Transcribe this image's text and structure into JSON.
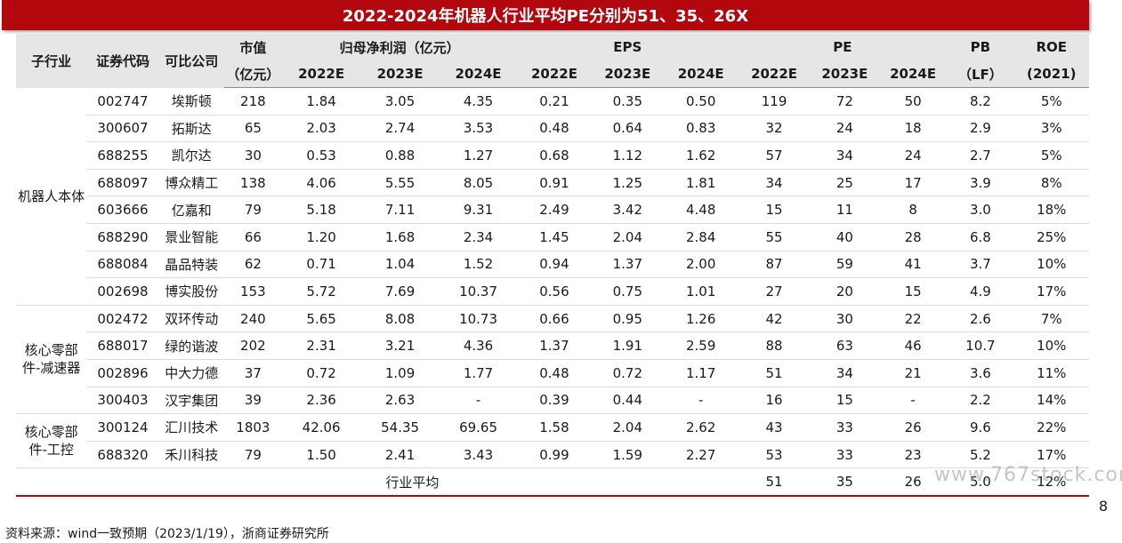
{
  "title": "2022-2024年机器人行业平均PE分别为51、35、26X",
  "header": {
    "row1": {
      "subind": "子行业",
      "code": "证券代码",
      "company": "可比公司",
      "mktcap": "市值",
      "profit": "归母净利润（亿元）",
      "eps": "EPS",
      "pe": "PE",
      "pb": "PB",
      "roe": "ROE"
    },
    "row2": {
      "mktcap": "（亿元）",
      "p22": "2022E",
      "p23": "2023E",
      "p24": "2024E",
      "e22": "2022E",
      "e23": "2023E",
      "e24": "2024E",
      "pe22": "2022E",
      "pe23": "2023E",
      "pe24": "2024E",
      "pb": "（LF）",
      "roe": "(2021)"
    }
  },
  "groups": [
    "机器人本体",
    "核心零部件-减速器",
    "核心零部件-工控"
  ],
  "rows": [
    [
      "002747",
      "埃斯顿",
      "218",
      "1.84",
      "3.05",
      "4.35",
      "0.21",
      "0.35",
      "0.50",
      "119",
      "72",
      "50",
      "8.2",
      "5%"
    ],
    [
      "300607",
      "拓斯达",
      "65",
      "2.03",
      "2.74",
      "3.53",
      "0.48",
      "0.64",
      "0.83",
      "32",
      "24",
      "18",
      "2.9",
      "3%"
    ],
    [
      "688255",
      "凯尔达",
      "30",
      "0.53",
      "0.88",
      "1.27",
      "0.68",
      "1.12",
      "1.62",
      "57",
      "34",
      "24",
      "2.7",
      "5%"
    ],
    [
      "688097",
      "博众精工",
      "138",
      "4.06",
      "5.55",
      "8.05",
      "0.91",
      "1.25",
      "1.81",
      "34",
      "25",
      "17",
      "3.9",
      "8%"
    ],
    [
      "603666",
      "亿嘉和",
      "79",
      "5.18",
      "7.11",
      "9.31",
      "2.49",
      "3.42",
      "4.48",
      "15",
      "11",
      "8",
      "3.0",
      "18%"
    ],
    [
      "688290",
      "景业智能",
      "66",
      "1.20",
      "1.68",
      "2.34",
      "1.45",
      "2.04",
      "2.84",
      "55",
      "40",
      "28",
      "6.8",
      "25%"
    ],
    [
      "688084",
      "晶品特装",
      "62",
      "0.71",
      "1.04",
      "1.52",
      "0.94",
      "1.37",
      "2.00",
      "87",
      "59",
      "41",
      "3.7",
      "10%"
    ],
    [
      "002698",
      "博实股份",
      "153",
      "5.72",
      "7.69",
      "10.37",
      "0.56",
      "0.75",
      "1.01",
      "27",
      "20",
      "15",
      "4.9",
      "17%"
    ],
    [
      "002472",
      "双环传动",
      "240",
      "5.65",
      "8.08",
      "10.73",
      "0.66",
      "0.95",
      "1.26",
      "42",
      "30",
      "22",
      "2.6",
      "7%"
    ],
    [
      "688017",
      "绿的谐波",
      "202",
      "2.31",
      "3.21",
      "4.36",
      "1.37",
      "1.91",
      "2.59",
      "88",
      "63",
      "46",
      "10.7",
      "10%"
    ],
    [
      "002896",
      "中大力德",
      "37",
      "0.72",
      "1.09",
      "1.77",
      "0.48",
      "0.72",
      "1.17",
      "51",
      "34",
      "21",
      "3.6",
      "11%"
    ],
    [
      "300403",
      "汉宇集团",
      "39",
      "2.36",
      "2.63",
      "-",
      "0.39",
      "0.44",
      "-",
      "16",
      "15",
      "-",
      "2.2",
      "14%"
    ],
    [
      "300124",
      "汇川技术",
      "1803",
      "42.06",
      "54.35",
      "69.65",
      "1.58",
      "2.04",
      "2.62",
      "43",
      "33",
      "26",
      "9.6",
      "22%"
    ],
    [
      "688320",
      "禾川科技",
      "79",
      "1.50",
      "2.41",
      "3.43",
      "0.99",
      "1.59",
      "2.27",
      "53",
      "33",
      "23",
      "5.2",
      "17%"
    ]
  ],
  "average": {
    "label": "行业平均",
    "pe22": "51",
    "pe23": "35",
    "pe24": "26",
    "pb": "5.0",
    "roe": "12%"
  },
  "source": "资料来源：wind一致预期（2023/1/19），浙商证券研究所",
  "page_number": "8",
  "watermark": "www.767stock.com",
  "colors": {
    "accent": "#b1070d",
    "header_bg": "#e6e6e6"
  }
}
